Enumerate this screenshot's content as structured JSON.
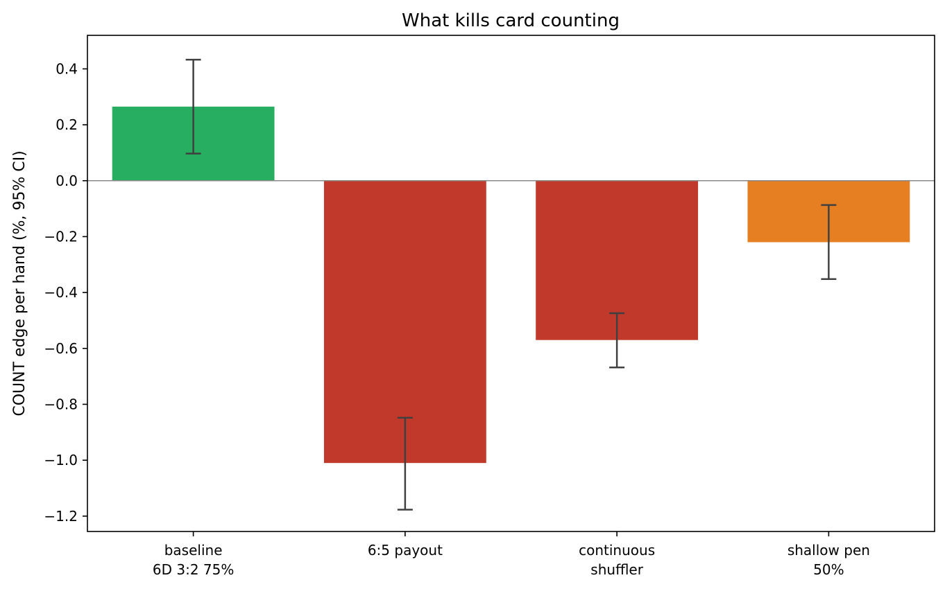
{
  "chart_data": {
    "type": "bar",
    "title": "What kills card counting",
    "xlabel": "",
    "ylabel": "COUNT edge per hand  (%, 95% CI)",
    "ylim": [
      -1.255,
      0.52
    ],
    "yticks": [
      0.4,
      0.2,
      0.0,
      -0.2,
      -0.4,
      -0.6,
      -0.8,
      -1.0,
      -1.2
    ],
    "ytick_labels": [
      "0.4",
      "0.2",
      "0.0",
      "−0.2",
      "−0.4",
      "−0.6",
      "−0.8",
      "−1.0",
      "−1.2"
    ],
    "categories": [
      [
        "baseline",
        "6D 3:2 75%"
      ],
      [
        "6:5 payout"
      ],
      [
        "continuous",
        "shuffler"
      ],
      [
        "shallow pen",
        "50%"
      ]
    ],
    "values": [
      0.265,
      -1.01,
      -0.57,
      -0.22
    ],
    "ci_low": [
      0.097,
      -1.177,
      -0.668,
      -0.352
    ],
    "ci_high": [
      0.433,
      -0.848,
      -0.474,
      -0.087
    ],
    "colors": [
      "#27ae60",
      "#c0392b",
      "#c0392b",
      "#e67e22"
    ],
    "zero_line_color": "#888888",
    "errorbar_color": "#404040",
    "grid": false
  }
}
